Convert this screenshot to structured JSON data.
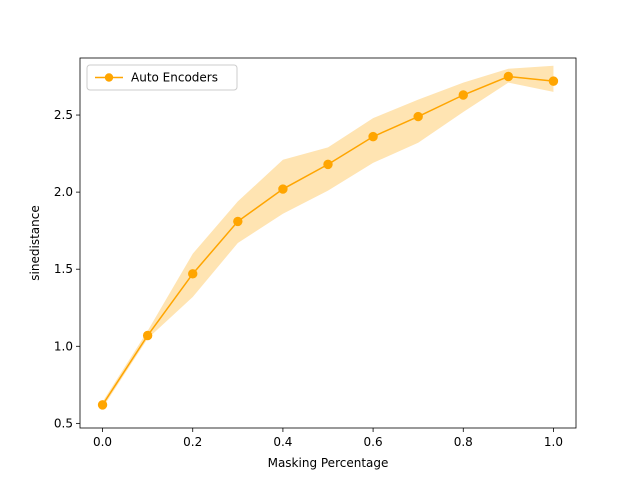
{
  "chart_data": {
    "type": "line",
    "title": "",
    "xlabel": "Masking Percentage",
    "ylabel": "sinedistance",
    "xlim": [
      -0.05,
      1.05
    ],
    "ylim": [
      0.47,
      2.87
    ],
    "xticks": [
      0.0,
      0.2,
      0.4,
      0.6,
      0.8,
      1.0
    ],
    "xtick_labels": [
      "0.0",
      "0.2",
      "0.4",
      "0.6",
      "0.8",
      "1.0"
    ],
    "yticks": [
      0.5,
      1.0,
      1.5,
      2.0,
      2.5
    ],
    "ytick_labels": [
      "0.5",
      "1.0",
      "1.5",
      "2.0",
      "2.5"
    ],
    "grid": false,
    "legend_position": "top-left",
    "series": [
      {
        "name": "Auto Encoders",
        "color": "#ffa500",
        "marker": "circle",
        "x": [
          0.0,
          0.1,
          0.2,
          0.3,
          0.4,
          0.5,
          0.6,
          0.7,
          0.8,
          0.9,
          1.0
        ],
        "y": [
          0.62,
          1.07,
          1.47,
          1.81,
          2.02,
          2.18,
          2.36,
          2.49,
          2.63,
          2.75,
          2.72
        ],
        "lower": [
          0.6,
          1.05,
          1.32,
          1.67,
          1.86,
          2.01,
          2.19,
          2.32,
          2.52,
          2.71,
          2.65
        ],
        "upper": [
          0.64,
          1.1,
          1.6,
          1.94,
          2.21,
          2.29,
          2.48,
          2.6,
          2.71,
          2.8,
          2.82
        ]
      }
    ]
  }
}
